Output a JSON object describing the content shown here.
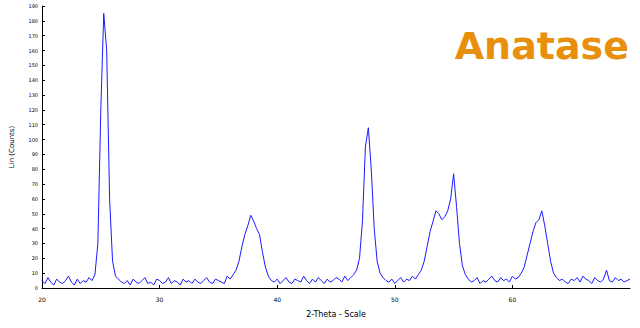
{
  "chart_data": {
    "type": "line",
    "title": "Anatase",
    "xlabel": "2-Theta - Scale",
    "ylabel": "Lin (Counts)",
    "color": "#1a1aff",
    "title_color": "#e8900c",
    "grid": false,
    "xlim": [
      20,
      70
    ],
    "xticks": [
      20,
      30,
      40,
      50,
      60
    ],
    "ylim": [
      0,
      190
    ],
    "yticks": [
      0,
      10,
      20,
      30,
      40,
      50,
      60,
      70,
      80,
      90,
      100,
      110,
      120,
      130,
      140,
      150,
      160,
      170,
      180,
      190
    ],
    "x": [
      20,
      20.25,
      20.5,
      20.75,
      21,
      21.25,
      21.5,
      21.75,
      22,
      22.25,
      22.5,
      22.75,
      23,
      23.25,
      23.5,
      23.75,
      24,
      24.25,
      24.5,
      24.75,
      25,
      25.25,
      25.5,
      25.75,
      26,
      26.25,
      26.5,
      26.75,
      27,
      27.25,
      27.5,
      27.75,
      28,
      28.25,
      28.5,
      28.75,
      29,
      29.25,
      29.5,
      29.75,
      30,
      30.25,
      30.5,
      30.75,
      31,
      31.25,
      31.5,
      31.75,
      32,
      32.25,
      32.5,
      32.75,
      33,
      33.25,
      33.5,
      33.75,
      34,
      34.25,
      34.5,
      34.75,
      35,
      35.25,
      35.5,
      35.75,
      36,
      36.25,
      36.5,
      36.75,
      37,
      37.25,
      37.5,
      37.75,
      38,
      38.25,
      38.5,
      38.75,
      39,
      39.25,
      39.5,
      39.75,
      40,
      40.25,
      40.5,
      40.75,
      41,
      41.25,
      41.5,
      41.75,
      42,
      42.25,
      42.5,
      42.75,
      43,
      43.25,
      43.5,
      43.75,
      44,
      44.25,
      44.5,
      44.75,
      45,
      45.25,
      45.5,
      45.75,
      46,
      46.25,
      46.5,
      46.75,
      47,
      47.25,
      47.5,
      47.75,
      48,
      48.25,
      48.5,
      48.75,
      49,
      49.25,
      49.5,
      49.75,
      50,
      50.25,
      50.5,
      50.75,
      51,
      51.25,
      51.5,
      51.75,
      52,
      52.25,
      52.5,
      52.75,
      53,
      53.25,
      53.5,
      53.75,
      54,
      54.25,
      54.5,
      54.75,
      55,
      55.25,
      55.5,
      55.75,
      56,
      56.25,
      56.5,
      56.75,
      57,
      57.25,
      57.5,
      57.75,
      58,
      58.25,
      58.5,
      58.75,
      59,
      59.25,
      59.5,
      59.75,
      60,
      60.25,
      60.5,
      60.75,
      61,
      61.25,
      61.5,
      61.75,
      62,
      62.25,
      62.5,
      62.75,
      63,
      63.25,
      63.5,
      63.75,
      64,
      64.25,
      64.5,
      64.75,
      65,
      65.25,
      65.5,
      65.75,
      66,
      66.25,
      66.5,
      66.75,
      67,
      67.25,
      67.5,
      67.75,
      68,
      68.25,
      68.5,
      68.75,
      69,
      69.25,
      69.5,
      69.75,
      70
    ],
    "values": [
      5,
      3,
      7,
      4,
      2,
      6,
      4,
      3,
      5,
      8,
      4,
      2,
      6,
      3,
      5,
      4,
      7,
      5,
      9,
      30,
      120,
      185,
      160,
      60,
      18,
      8,
      6,
      4,
      3,
      5,
      2,
      6,
      4,
      3,
      5,
      7,
      3,
      4,
      2,
      6,
      5,
      3,
      4,
      7,
      3,
      5,
      4,
      2,
      6,
      4,
      5,
      3,
      6,
      4,
      3,
      5,
      7,
      4,
      3,
      6,
      5,
      4,
      3,
      8,
      6,
      9,
      12,
      18,
      28,
      36,
      42,
      49,
      45,
      40,
      36,
      24,
      14,
      8,
      5,
      4,
      6,
      3,
      5,
      7,
      4,
      3,
      6,
      5,
      4,
      8,
      5,
      3,
      6,
      4,
      7,
      5,
      3,
      6,
      4,
      5,
      7,
      6,
      4,
      8,
      5,
      7,
      9,
      12,
      20,
      45,
      95,
      108,
      80,
      40,
      18,
      10,
      7,
      5,
      4,
      6,
      3,
      5,
      7,
      4,
      6,
      5,
      8,
      6,
      9,
      12,
      18,
      28,
      38,
      45,
      52,
      50,
      46,
      48,
      52,
      60,
      77,
      55,
      30,
      15,
      9,
      6,
      4,
      5,
      7,
      3,
      5,
      4,
      6,
      8,
      5,
      4,
      7,
      5,
      6,
      4,
      8,
      6,
      7,
      10,
      14,
      22,
      30,
      38,
      44,
      46,
      52,
      42,
      30,
      18,
      10,
      7,
      5,
      6,
      4,
      3,
      6,
      5,
      7,
      4,
      8,
      6,
      5,
      3,
      7,
      5,
      4,
      6,
      12,
      5,
      4,
      7,
      5,
      6,
      4,
      5,
      6
    ]
  }
}
